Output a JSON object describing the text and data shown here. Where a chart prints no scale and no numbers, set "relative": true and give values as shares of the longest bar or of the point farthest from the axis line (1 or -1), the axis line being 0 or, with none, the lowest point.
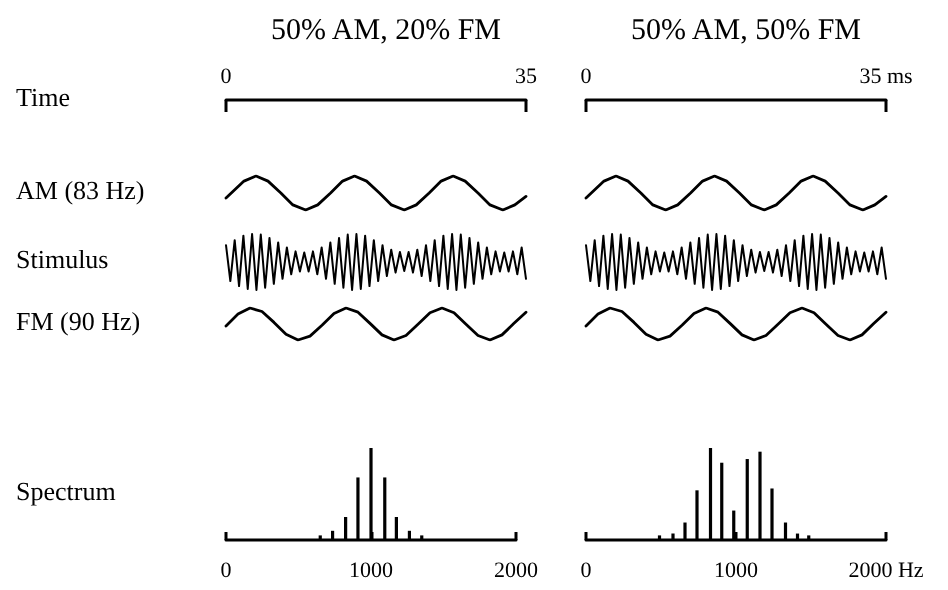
{
  "chart_data": [
    {
      "type": "line",
      "title": "50% AM, 20% FM",
      "xlabel": "Time",
      "ylabel": "AM (83 Hz)",
      "relative": true,
      "color": "#000000",
      "marker": "none",
      "xlim": [
        0,
        35
      ],
      "xticks": [
        0,
        35
      ],
      "x": [
        0,
        2.1,
        3.5,
        4.9,
        6.4,
        7.8,
        9.3,
        10.7,
        12.2,
        13.6,
        15,
        16.4,
        17.9,
        19.3,
        20.8,
        22.2,
        23.7,
        25.1,
        26.5,
        27.9,
        29.4,
        30.8,
        32.3,
        33.7,
        35
      ],
      "values": [
        0.35,
        0.85,
        1,
        0.85,
        0.5,
        0.15,
        0,
        0.15,
        0.5,
        0.85,
        1,
        0.85,
        0.5,
        0.15,
        0,
        0.15,
        0.5,
        0.85,
        1,
        0.85,
        0.5,
        0.15,
        0,
        0.15,
        0.4
      ]
    },
    {
      "type": "line",
      "ylabel": "Stimulus",
      "relative": true,
      "color": "#000000",
      "marker": "none",
      "tick_labels": false,
      "categories": [
        null,
        null,
        null,
        null,
        null,
        null,
        null,
        null,
        null,
        null,
        null,
        null,
        null,
        null,
        null,
        null,
        null,
        null,
        null,
        null,
        null,
        null,
        null,
        null,
        null,
        null,
        null,
        null,
        null,
        null,
        null,
        null,
        null,
        null,
        null,
        null,
        null,
        null,
        null,
        null,
        null,
        null,
        null,
        null,
        null,
        null,
        null,
        null,
        null,
        null,
        null,
        null,
        null,
        null,
        null,
        null,
        null,
        null,
        null,
        null,
        null,
        null,
        null,
        null,
        null,
        null,
        null,
        null,
        null,
        null
      ],
      "values": [
        0.8,
        0.16,
        0.89,
        0.07,
        0.97,
        0.02,
        1,
        0,
        0.99,
        0.04,
        0.93,
        0.11,
        0.85,
        0.2,
        0.76,
        0.28,
        0.69,
        0.33,
        0.67,
        0.33,
        0.69,
        0.28,
        0.76,
        0.2,
        0.85,
        0.11,
        0.93,
        0.04,
        0.99,
        0,
        1,
        0.02,
        0.97,
        0.07,
        0.89,
        0.16,
        0.8,
        0.25,
        0.72,
        0.31,
        0.68,
        0.34,
        0.68,
        0.31,
        0.72,
        0.25,
        0.8,
        0.16,
        0.89,
        0.07,
        0.97,
        0.02,
        1,
        0,
        0.99,
        0.04,
        0.93,
        0.11,
        0.85,
        0.2,
        0.76,
        0.28,
        0.69,
        0.33,
        0.67,
        0.33,
        0.69,
        0.28,
        0.76,
        0.2
      ]
    },
    {
      "type": "line",
      "ylabel": "FM (90 Hz)",
      "relative": true,
      "color": "#000000",
      "marker": "none",
      "tick_labels": false,
      "categories": [
        null,
        null,
        null,
        null,
        null,
        null,
        null,
        null,
        null,
        null,
        null,
        null,
        null,
        null,
        null,
        null,
        null,
        null,
        null,
        null,
        null,
        null,
        null,
        null,
        null,
        null
      ],
      "values": [
        0.44,
        0.81,
        1,
        0.89,
        0.55,
        0.18,
        0,
        0.12,
        0.46,
        0.83,
        1,
        0.87,
        0.52,
        0.16,
        0,
        0.14,
        0.49,
        0.85,
        1,
        0.85,
        0.49,
        0.14,
        0,
        0.16,
        0.52,
        0.87
      ]
    },
    {
      "type": "bar",
      "ylabel": "Spectrum",
      "relative": true,
      "color": "#000000",
      "xlim": [
        0,
        2000
      ],
      "xticks": [
        0,
        1000,
        2000
      ],
      "x": [
        650,
        735,
        825,
        910,
        1000,
        1095,
        1175,
        1265,
        1350
      ],
      "values": [
        0.05,
        0.1,
        0.25,
        0.68,
        1,
        0.68,
        0.25,
        0.1,
        0.05
      ]
    },
    {
      "type": "line",
      "title": "50% AM, 50% FM",
      "relative": true,
      "color": "#000000",
      "marker": "none",
      "xlim": [
        0,
        35
      ],
      "xticks": [
        0,
        {
          "value": 35,
          "label": "35 ms"
        }
      ],
      "x": [
        0,
        2.1,
        3.5,
        4.9,
        6.4,
        7.8,
        9.3,
        10.7,
        12.2,
        13.6,
        15,
        16.4,
        17.9,
        19.3,
        20.8,
        22.2,
        23.7,
        25.1,
        26.5,
        27.9,
        29.4,
        30.8,
        32.3,
        33.7,
        35
      ],
      "values": [
        0.35,
        0.85,
        1,
        0.85,
        0.5,
        0.15,
        0,
        0.15,
        0.5,
        0.85,
        1,
        0.85,
        0.5,
        0.15,
        0,
        0.15,
        0.5,
        0.85,
        1,
        0.85,
        0.5,
        0.15,
        0,
        0.15,
        0.4
      ]
    },
    {
      "type": "line",
      "relative": true,
      "color": "#000000",
      "marker": "none",
      "tick_labels": false,
      "categories": [
        null,
        null,
        null,
        null,
        null,
        null,
        null,
        null,
        null,
        null,
        null,
        null,
        null,
        null,
        null,
        null,
        null,
        null,
        null,
        null,
        null,
        null,
        null,
        null,
        null,
        null,
        null,
        null,
        null,
        null,
        null,
        null,
        null,
        null,
        null,
        null,
        null,
        null,
        null,
        null,
        null,
        null,
        null,
        null,
        null,
        null,
        null,
        null,
        null,
        null,
        null,
        null,
        null,
        null,
        null,
        null,
        null,
        null,
        null,
        null,
        null,
        null,
        null,
        null,
        null,
        null,
        null,
        null,
        null,
        null
      ],
      "values": [
        0.8,
        0.16,
        0.89,
        0.07,
        0.97,
        0.02,
        1,
        0,
        0.99,
        0.04,
        0.93,
        0.11,
        0.85,
        0.2,
        0.76,
        0.28,
        0.69,
        0.33,
        0.67,
        0.33,
        0.69,
        0.28,
        0.76,
        0.2,
        0.85,
        0.11,
        0.93,
        0.04,
        0.99,
        0,
        1,
        0.02,
        0.97,
        0.07,
        0.89,
        0.16,
        0.8,
        0.25,
        0.72,
        0.31,
        0.68,
        0.34,
        0.68,
        0.31,
        0.72,
        0.25,
        0.8,
        0.16,
        0.89,
        0.07,
        0.97,
        0.02,
        1,
        0,
        0.99,
        0.04,
        0.93,
        0.11,
        0.85,
        0.2,
        0.76,
        0.28,
        0.69,
        0.33,
        0.67,
        0.33,
        0.69,
        0.28,
        0.76,
        0.2
      ]
    },
    {
      "type": "line",
      "relative": true,
      "color": "#000000",
      "marker": "none",
      "tick_labels": false,
      "categories": [
        null,
        null,
        null,
        null,
        null,
        null,
        null,
        null,
        null,
        null,
        null,
        null,
        null,
        null,
        null,
        null,
        null,
        null,
        null,
        null,
        null,
        null,
        null,
        null,
        null,
        null
      ],
      "values": [
        0.44,
        0.81,
        1,
        0.89,
        0.55,
        0.18,
        0,
        0.12,
        0.46,
        0.83,
        1,
        0.87,
        0.52,
        0.16,
        0,
        0.14,
        0.49,
        0.85,
        1,
        0.85,
        0.49,
        0.14,
        0,
        0.16,
        0.52,
        0.87
      ]
    },
    {
      "type": "bar",
      "relative": true,
      "color": "#000000",
      "xlim": [
        0,
        2000
      ],
      "xticks": [
        0,
        1000,
        {
          "value": 2000,
          "label": "2000 Hz"
        }
      ],
      "x": [
        490,
        580,
        660,
        740,
        830,
        905,
        985,
        1075,
        1160,
        1240,
        1330,
        1410,
        1485
      ],
      "values": [
        0.05,
        0.07,
        0.19,
        0.54,
        1,
        0.84,
        0.32,
        0.88,
        0.96,
        0.56,
        0.19,
        0.07,
        0.05
      ]
    }
  ]
}
